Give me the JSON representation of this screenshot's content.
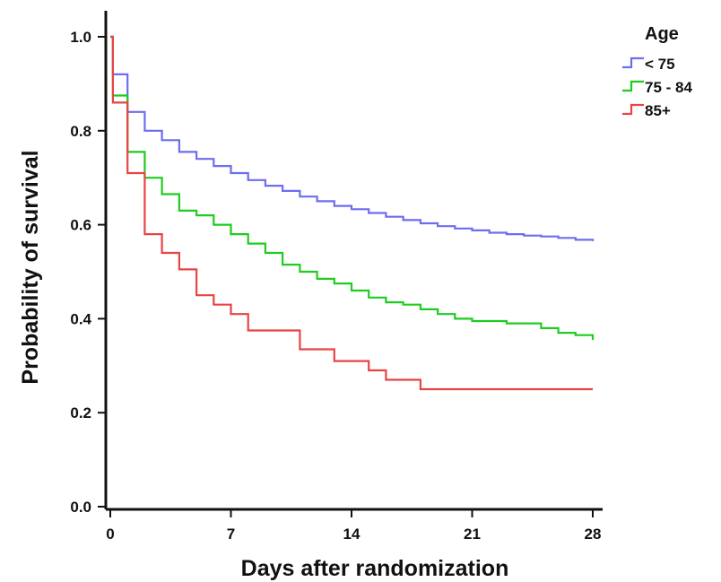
{
  "chart_data": {
    "type": "line",
    "step": true,
    "xlabel": "Days after randomization",
    "ylabel": "Probability of survival",
    "xlim": [
      0,
      28
    ],
    "ylim": [
      0,
      1.0
    ],
    "x_ticks": [
      0,
      7,
      14,
      21,
      28
    ],
    "x_tick_labels": [
      "0",
      "7",
      "14",
      "21",
      "28"
    ],
    "y_ticks": [
      0.0,
      0.2,
      0.4,
      0.6,
      0.8,
      1.0
    ],
    "y_tick_labels": [
      "0.0",
      "0.2",
      "0.4",
      "0.6",
      "0.8",
      "1.0"
    ],
    "grid": false,
    "legend": {
      "title": "Age",
      "position": "top-right"
    },
    "series": [
      {
        "name": "< 75",
        "color": "#6d6df0",
        "x": [
          0,
          0.15,
          1,
          2,
          3,
          4,
          5,
          6,
          7,
          8,
          9,
          10,
          11,
          12,
          13,
          14,
          15,
          16,
          17,
          18,
          19,
          20,
          21,
          22,
          23,
          24,
          25,
          26,
          27,
          28
        ],
        "y": [
          1.0,
          0.92,
          0.84,
          0.8,
          0.78,
          0.755,
          0.74,
          0.725,
          0.71,
          0.695,
          0.683,
          0.672,
          0.66,
          0.65,
          0.64,
          0.633,
          0.625,
          0.617,
          0.61,
          0.603,
          0.597,
          0.592,
          0.588,
          0.583,
          0.58,
          0.577,
          0.575,
          0.572,
          0.568,
          0.565
        ]
      },
      {
        "name": "75 - 84",
        "color": "#1fcc1f",
        "x": [
          0,
          0.15,
          1,
          2,
          3,
          4,
          5,
          6,
          7,
          8,
          9,
          10,
          11,
          12,
          13,
          14,
          15,
          16,
          17,
          18,
          19,
          20,
          21,
          23,
          25,
          26,
          27,
          28
        ],
        "y": [
          1.0,
          0.875,
          0.755,
          0.7,
          0.665,
          0.63,
          0.62,
          0.6,
          0.58,
          0.56,
          0.54,
          0.515,
          0.5,
          0.485,
          0.475,
          0.46,
          0.445,
          0.435,
          0.43,
          0.42,
          0.41,
          0.4,
          0.395,
          0.39,
          0.38,
          0.37,
          0.365,
          0.355
        ]
      },
      {
        "name": "85+",
        "color": "#e84444",
        "x": [
          0,
          0.15,
          1,
          2,
          3,
          4,
          5,
          6,
          7,
          8,
          11,
          13,
          15,
          16,
          18,
          28
        ],
        "y": [
          1.0,
          0.86,
          0.71,
          0.58,
          0.54,
          0.505,
          0.45,
          0.43,
          0.41,
          0.375,
          0.335,
          0.31,
          0.29,
          0.27,
          0.25,
          0.25
        ]
      }
    ]
  }
}
